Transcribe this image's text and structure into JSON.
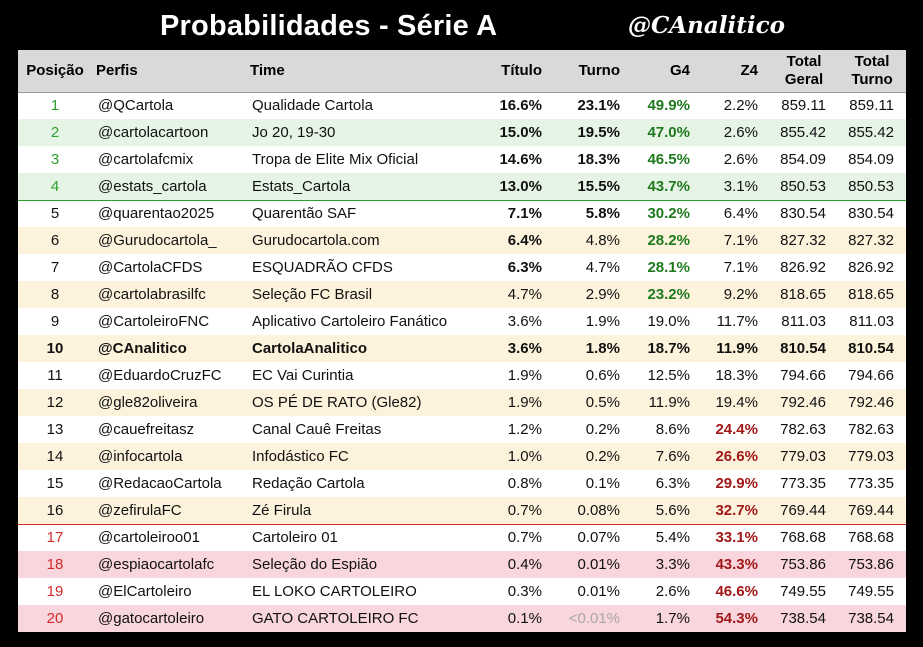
{
  "header": {
    "title": "Probabilidades - Série A",
    "brand": "@CAnalitico"
  },
  "columns": [
    "Posição",
    "Perfis",
    "Time",
    "Título",
    "Turno",
    "G4",
    "Z4",
    "Total Geral",
    "Total Turno"
  ],
  "rows": [
    {
      "pos": "1",
      "perfil": "@QCartola",
      "time": "Qualidade Cartola",
      "titulo": "16.6%",
      "turno": "23.1%",
      "g4": "49.9%",
      "z4": "2.2%",
      "total_geral": "859.11",
      "total_turno": "859.11"
    },
    {
      "pos": "2",
      "perfil": "@cartolacartoon",
      "time": "Jo 20, 19-30",
      "titulo": "15.0%",
      "turno": "19.5%",
      "g4": "47.0%",
      "z4": "2.6%",
      "total_geral": "855.42",
      "total_turno": "855.42"
    },
    {
      "pos": "3",
      "perfil": "@cartolafcmix",
      "time": "Tropa de Elite Mix Oficial",
      "titulo": "14.6%",
      "turno": "18.3%",
      "g4": "46.5%",
      "z4": "2.6%",
      "total_geral": "854.09",
      "total_turno": "854.09"
    },
    {
      "pos": "4",
      "perfil": "@estats_cartola",
      "time": "Estats_Cartola",
      "titulo": "13.0%",
      "turno": "15.5%",
      "g4": "43.7%",
      "z4": "3.1%",
      "total_geral": "850.53",
      "total_turno": "850.53"
    },
    {
      "pos": "5",
      "perfil": "@quarentao2025",
      "time": "Quarentão SAF",
      "titulo": "7.1%",
      "turno": "5.8%",
      "g4": "30.2%",
      "z4": "6.4%",
      "total_geral": "830.54",
      "total_turno": "830.54"
    },
    {
      "pos": "6",
      "perfil": "@Gurudocartola_",
      "time": "Gurudocartola.com",
      "titulo": "6.4%",
      "turno": "4.8%",
      "g4": "28.2%",
      "z4": "7.1%",
      "total_geral": "827.32",
      "total_turno": "827.32"
    },
    {
      "pos": "7",
      "perfil": "@CartolaCFDS",
      "time": "ESQUADRÃO CFDS",
      "titulo": "6.3%",
      "turno": "4.7%",
      "g4": "28.1%",
      "z4": "7.1%",
      "total_geral": "826.92",
      "total_turno": "826.92"
    },
    {
      "pos": "8",
      "perfil": "@cartolabrasilfc",
      "time": "Seleção FC Brasil",
      "titulo": "4.7%",
      "turno": "2.9%",
      "g4": "23.2%",
      "z4": "9.2%",
      "total_geral": "818.65",
      "total_turno": "818.65"
    },
    {
      "pos": "9",
      "perfil": "@CartoleiroFNC",
      "time": "Aplicativo Cartoleiro Fanático",
      "titulo": "3.6%",
      "turno": "1.9%",
      "g4": "19.0%",
      "z4": "11.7%",
      "total_geral": "811.03",
      "total_turno": "811.03"
    },
    {
      "pos": "10",
      "perfil": "@CAnalitico",
      "time": "CartolaAnalitico",
      "titulo": "3.6%",
      "turno": "1.8%",
      "g4": "18.7%",
      "z4": "11.9%",
      "total_geral": "810.54",
      "total_turno": "810.54"
    },
    {
      "pos": "11",
      "perfil": "@EduardoCruzFC",
      "time": "EC Vai Curintia",
      "titulo": "1.9%",
      "turno": "0.6%",
      "g4": "12.5%",
      "z4": "18.3%",
      "total_geral": "794.66",
      "total_turno": "794.66"
    },
    {
      "pos": "12",
      "perfil": "@gle82oliveira",
      "time": "OS PÉ DE RATO (Gle82)",
      "titulo": "1.9%",
      "turno": "0.5%",
      "g4": "11.9%",
      "z4": "19.4%",
      "total_geral": "792.46",
      "total_turno": "792.46"
    },
    {
      "pos": "13",
      "perfil": "@cauefreitasz",
      "time": "Canal Cauê Freitas",
      "titulo": "1.2%",
      "turno": "0.2%",
      "g4": "8.6%",
      "z4": "24.4%",
      "total_geral": "782.63",
      "total_turno": "782.63"
    },
    {
      "pos": "14",
      "perfil": "@infocartola",
      "time": "Infodástico FC",
      "titulo": "1.0%",
      "turno": "0.2%",
      "g4": "7.6%",
      "z4": "26.6%",
      "total_geral": "779.03",
      "total_turno": "779.03"
    },
    {
      "pos": "15",
      "perfil": "@RedacaoCartola",
      "time": "Redação Cartola",
      "titulo": "0.8%",
      "turno": "0.1%",
      "g4": "6.3%",
      "z4": "29.9%",
      "total_geral": "773.35",
      "total_turno": "773.35"
    },
    {
      "pos": "16",
      "perfil": "@zefirulaFC",
      "time": "Zé Firula",
      "titulo": "0.7%",
      "turno": "0.08%",
      "g4": "5.6%",
      "z4": "32.7%",
      "total_geral": "769.44",
      "total_turno": "769.44"
    },
    {
      "pos": "17",
      "perfil": "@cartoleiroo01",
      "time": "Cartoleiro 01",
      "titulo": "0.7%",
      "turno": "0.07%",
      "g4": "5.4%",
      "z4": "33.1%",
      "total_geral": "768.68",
      "total_turno": "768.68"
    },
    {
      "pos": "18",
      "perfil": "@espiaocartolafc",
      "time": "Seleção do Espião",
      "titulo": "0.4%",
      "turno": "0.01%",
      "g4": "3.3%",
      "z4": "43.3%",
      "total_geral": "753.86",
      "total_turno": "753.86"
    },
    {
      "pos": "19",
      "perfil": "@ElCartoleiro",
      "time": "EL LOKO CARTOLEIRO",
      "titulo": "0.3%",
      "turno": "0.01%",
      "g4": "2.6%",
      "z4": "46.6%",
      "total_geral": "749.55",
      "total_turno": "749.55"
    },
    {
      "pos": "20",
      "perfil": "@gatocartoleiro",
      "time": "GATO CARTOLEIRO FC",
      "titulo": "0.1%",
      "turno": "<0.01%",
      "g4": "1.7%",
      "z4": "54.3%",
      "total_geral": "738.54",
      "total_turno": "738.54"
    }
  ],
  "colors": {
    "background": "#000000",
    "header_row": "#d9d9d9",
    "stripe": "#fdf3dc",
    "green_stripe": "#e6f4e6",
    "red_stripe": "#f9d5de",
    "position_green": "#2e9e2e",
    "position_red": "#d12a2a",
    "g4_highlight": "#1f7a1f",
    "z4_highlight": "#a11818"
  }
}
